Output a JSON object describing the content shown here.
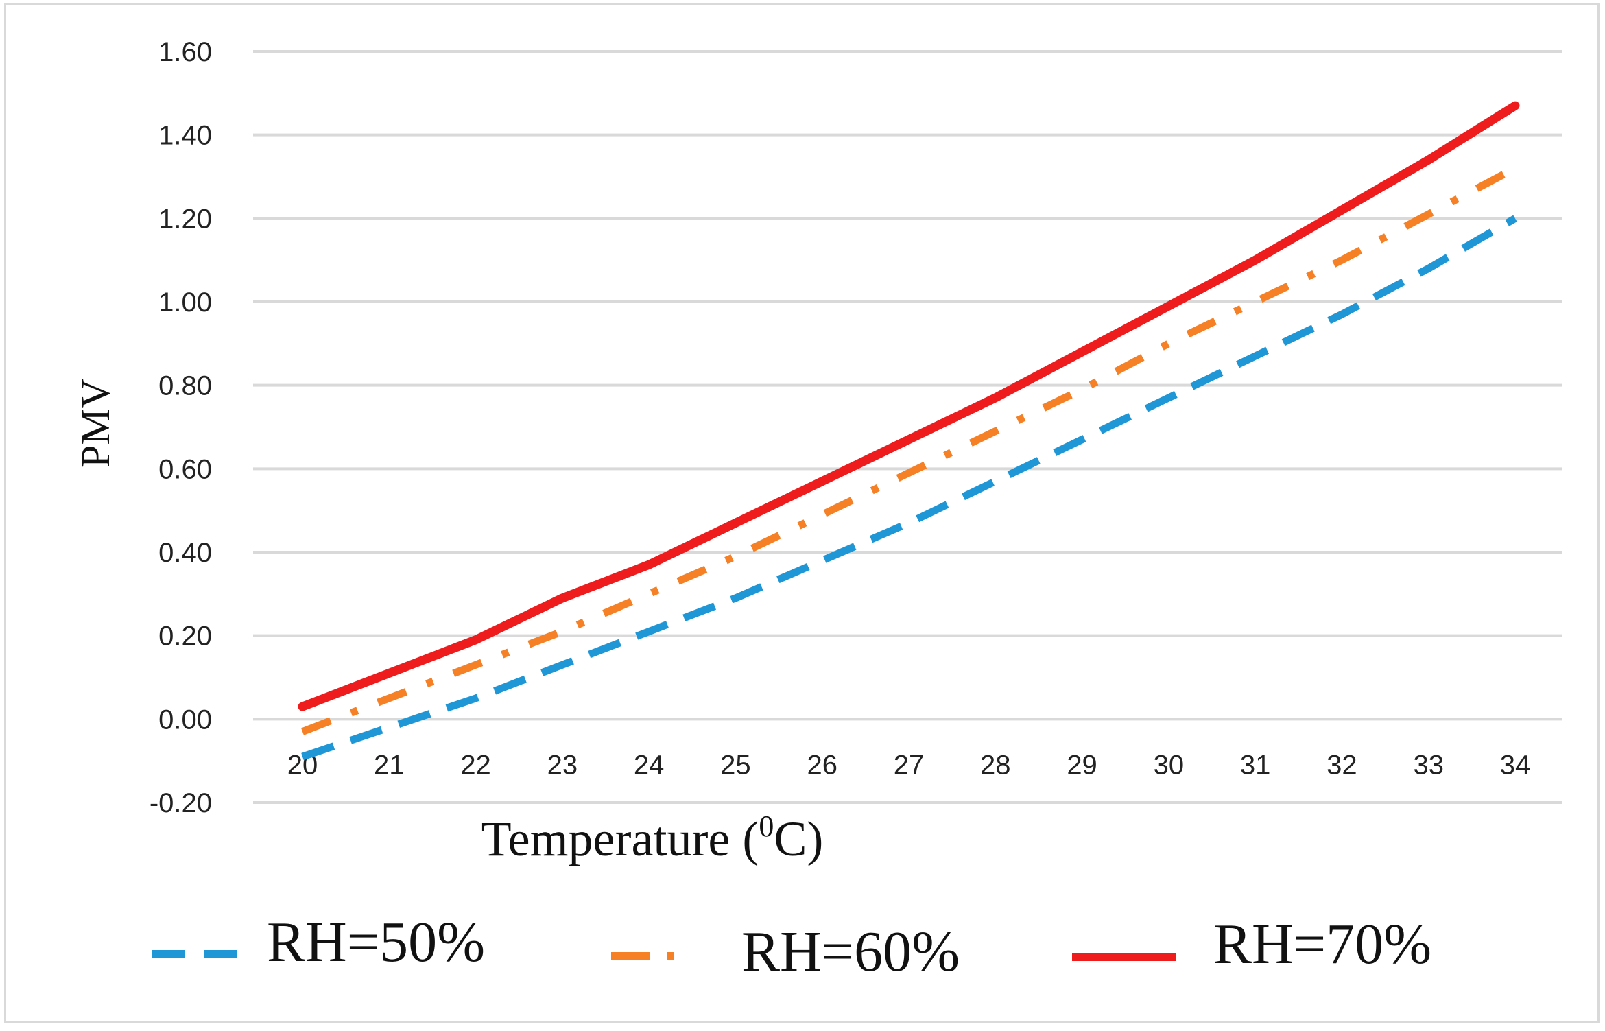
{
  "chart_data": {
    "type": "line",
    "title": "",
    "xlabel": "Temperature (",
    "xlabel_sup": "0",
    "xlabel_suffix": "C)",
    "ylabel": "PMV",
    "ylim": [
      -0.2,
      1.6
    ],
    "yticks": [
      "1.60",
      "1.40",
      "1.20",
      "1.00",
      "0.80",
      "0.60",
      "0.40",
      "0.20",
      "0.00",
      "-0.20"
    ],
    "x": [
      "20",
      "21",
      "22",
      "23",
      "24",
      "25",
      "26",
      "27",
      "28",
      "29",
      "30",
      "31",
      "32",
      "33",
      "34"
    ],
    "grid": true,
    "legend_position": "bottom",
    "series": [
      {
        "name": "RH=50%",
        "color": "#1f96d6",
        "style": "dashed",
        "values": [
          -0.09,
          -0.02,
          0.05,
          0.13,
          0.21,
          0.29,
          0.38,
          0.47,
          0.57,
          0.67,
          0.77,
          0.87,
          0.97,
          1.08,
          1.2
        ]
      },
      {
        "name": "RH=60%",
        "color": "#f58025",
        "style": "dash-dot",
        "values": [
          -0.03,
          0.05,
          0.13,
          0.21,
          0.3,
          0.39,
          0.49,
          0.59,
          0.69,
          0.79,
          0.9,
          1.0,
          1.1,
          1.21,
          1.32
        ]
      },
      {
        "name": "RH=70%",
        "color": "#ee1c1c",
        "style": "solid",
        "values": [
          0.03,
          0.11,
          0.19,
          0.29,
          0.37,
          0.47,
          0.57,
          0.67,
          0.77,
          0.88,
          0.99,
          1.1,
          1.22,
          1.34,
          1.47
        ]
      }
    ]
  }
}
